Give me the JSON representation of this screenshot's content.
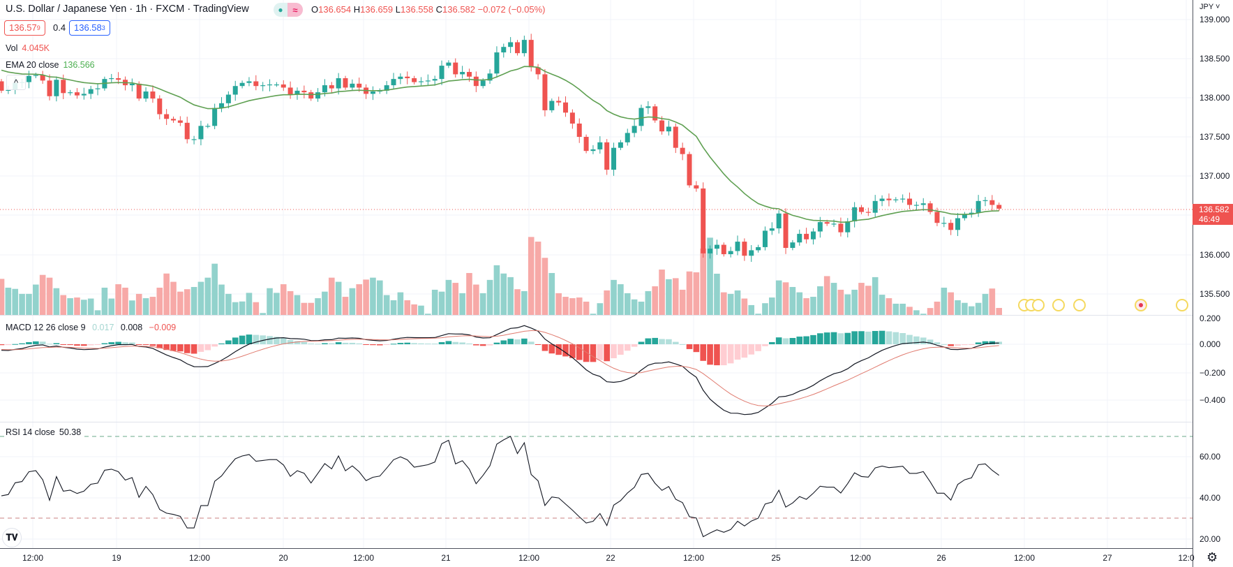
{
  "header": {
    "symbol_title": "U.S. Dollar / Japanese Yen · 1h · FXCM · TradingView",
    "status_dot": "●",
    "status_wave": "≈",
    "ohlc": {
      "o_label": "O",
      "o": "136.654",
      "h_label": "H",
      "h": "136.659",
      "l_label": "L",
      "l": "136.558",
      "c_label": "C",
      "c": "136.582",
      "change": "−0.072 (−0.05%)"
    },
    "bid_main": "136.57",
    "bid_sup": "9",
    "spread": "0.4",
    "ask_main": "136.58",
    "ask_sup": "3",
    "vol_label": "Vol",
    "vol_value": "4.045K",
    "ema_label": "EMA 20 close",
    "ema_value": "136.566",
    "collapse_glyph": "^"
  },
  "macd_legend": {
    "label": "MACD 12 26 close 9",
    "hist": "0.017",
    "macd": "0.008",
    "signal": "−0.009"
  },
  "rsi_legend": {
    "label": "RSI 14 close",
    "value": "50.38"
  },
  "price_axis": {
    "currency": "JPY ˅",
    "labels": [
      "139.000",
      "138.500",
      "138.000",
      "137.500",
      "137.000",
      "136.000",
      "135.500"
    ],
    "last_price": "136.582",
    "countdown": "46:49"
  },
  "macd_axis": {
    "labels": [
      "0.200",
      "0.000",
      "−0.200",
      "−0.400"
    ]
  },
  "rsi_axis": {
    "labels": [
      "60.00",
      "40.00",
      "20.00"
    ]
  },
  "time_axis": {
    "labels": [
      "12:00",
      "19",
      "12:00",
      "20",
      "12:00",
      "21",
      "12:00",
      "22",
      "12:00",
      "25",
      "12:00",
      "26",
      "12:00",
      "27",
      "12:0"
    ]
  },
  "logo_text": "TV",
  "colors": {
    "up": "#26a69a",
    "down": "#ef5350",
    "ema": "#5fa052",
    "macd": "#131722",
    "signal": "#e07a6e",
    "rsi": "#131722"
  },
  "chart_data": {
    "type": "candlestick",
    "price_range": [
      135.3,
      139.1
    ],
    "ema_period": 20,
    "ema_start": 138.38,
    "macd_params": [
      12,
      26,
      9
    ],
    "rsi_period": 14,
    "rsi_bands": [
      70,
      30
    ],
    "first_open": 138.21,
    "closes": [
      138.09,
      138.1,
      138.19,
      138.2,
      138.28,
      138.29,
      138.22,
      138.02,
      138.23,
      138.06,
      138.07,
      138.03,
      138.05,
      138.11,
      138.12,
      138.24,
      138.25,
      138.23,
      138.16,
      138.18,
      137.99,
      138.08,
      137.99,
      137.79,
      137.73,
      137.71,
      137.68,
      137.47,
      137.47,
      137.64,
      137.64,
      137.87,
      137.93,
      138.04,
      138.15,
      138.19,
      138.21,
      138.15,
      138.16,
      138.17,
      138.17,
      138.13,
      138.04,
      138.09,
      138.07,
      137.99,
      138.07,
      138.16,
      138.12,
      138.25,
      138.13,
      138.18,
      138.13,
      138.05,
      138.08,
      138.09,
      138.16,
      138.24,
      138.27,
      138.25,
      138.2,
      138.21,
      138.22,
      138.24,
      138.41,
      138.45,
      138.3,
      138.33,
      138.27,
      138.15,
      138.22,
      138.31,
      138.58,
      138.65,
      138.71,
      138.57,
      138.74,
      138.39,
      138.3,
      137.84,
      137.96,
      137.94,
      137.81,
      137.67,
      137.5,
      137.32,
      137.34,
      137.43,
      137.08,
      137.36,
      137.43,
      137.55,
      137.64,
      137.87,
      137.89,
      137.71,
      137.57,
      137.63,
      137.36,
      137.28,
      136.88,
      136.84,
      136.01,
      136.07,
      136.12,
      136.0,
      136.04,
      136.16,
      135.98,
      136.05,
      136.09,
      136.3,
      136.33,
      136.52,
      136.08,
      136.15,
      136.26,
      136.19,
      136.29,
      136.41,
      136.39,
      136.39,
      136.28,
      136.42,
      136.6,
      136.54,
      136.53,
      136.68,
      136.71,
      136.69,
      136.7,
      136.71,
      136.63,
      136.63,
      136.65,
      136.54,
      136.4,
      136.4,
      136.31,
      136.46,
      136.51,
      136.53,
      136.68,
      136.69,
      136.63,
      136.582
    ],
    "volumes_k": [
      20.9,
      15.8,
      15.1,
      12.2,
      12.2,
      17.6,
      23.2,
      21.6,
      15.5,
      11.5,
      9.7,
      10.1,
      8.8,
      9.5,
      2.7,
      15.8,
      9.5,
      17.8,
      15.8,
      8.4,
      12.2,
      9.7,
      10.5,
      15.8,
      24.0,
      19.2,
      13.5,
      14.9,
      16.2,
      19.2,
      21.6,
      29.7,
      17.6,
      12.2,
      7.4,
      7.8,
      12.8,
      7.4,
      1.1,
      15.5,
      12.8,
      17.8,
      13.8,
      11.5,
      7.0,
      7.0,
      9.7,
      13.5,
      21.6,
      19.2,
      10.5,
      15.5,
      17.8,
      20.5,
      21.6,
      20.0,
      11.5,
      8.5,
      13.1,
      8.5,
      6.1,
      5.4,
      0.7,
      14.6,
      13.5,
      20.3,
      18.6,
      12.6,
      24.3,
      17.6,
      12.6,
      20.3,
      28.8,
      24.0,
      21.9,
      14.9,
      13.8,
      45.2,
      42.5,
      33.1,
      24.3,
      12.6,
      10.5,
      9.7,
      10.1,
      7.7,
      0.7,
      6.8,
      14.2,
      20.3,
      17.8,
      12.6,
      9.0,
      7.7,
      13.8,
      16.6,
      26.3,
      20.7,
      21.3,
      14.6,
      25.2,
      24.7,
      38.5,
      44.8,
      23.9,
      13.1,
      12.2,
      14.2,
      9.5,
      5.7,
      0.7,
      6.8,
      10.1,
      20.0,
      18.9,
      16.2,
      13.1,
      9.7,
      10.5,
      16.6,
      22.5,
      18.6,
      14.6,
      11.9,
      14.6,
      18.6,
      16.9,
      21.9,
      11.7,
      9.7,
      6.5,
      6.5,
      4.7,
      2.7,
      0.7,
      4.0,
      7.7,
      15.8,
      13.1,
      8.5,
      7.0,
      5.0,
      7.0,
      12.2,
      15.3,
      4.045
    ]
  }
}
